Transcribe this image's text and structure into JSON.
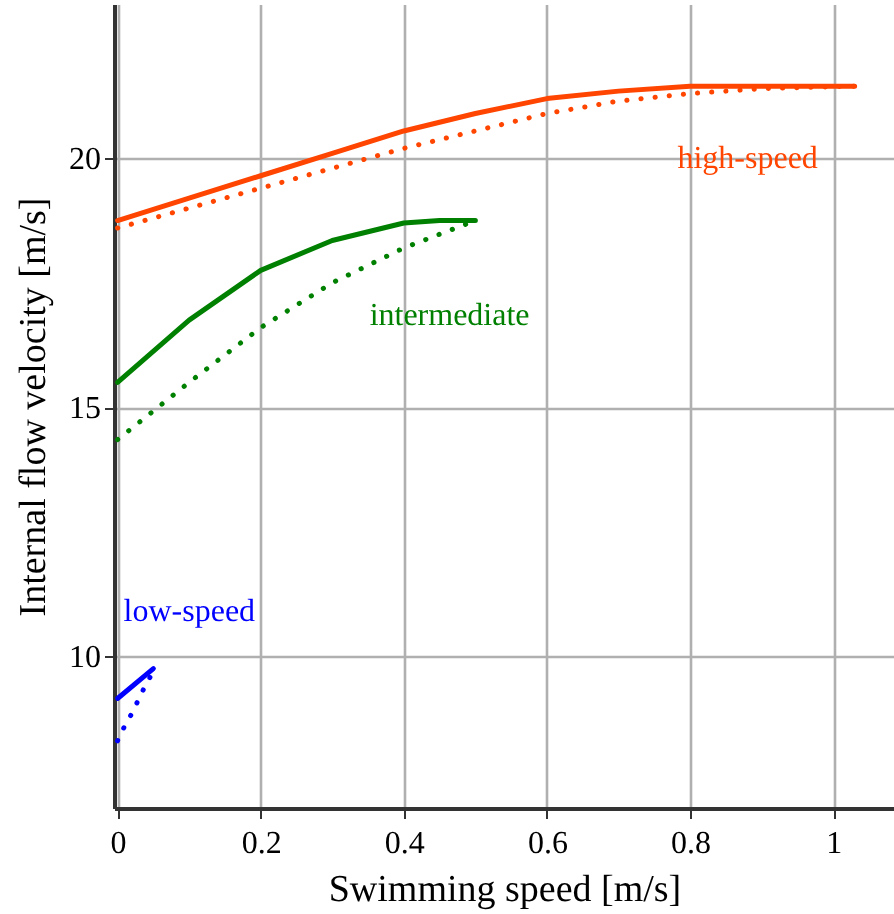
{
  "chart_data": {
    "type": "line",
    "xlabel": "Swimming speed [m/s]",
    "ylabel": "Internal flow velocity [m/s]",
    "xlim": [
      -0.005,
      1.085
    ],
    "ylim": [
      6.95,
      23.1
    ],
    "xticks": [
      0,
      0.2,
      0.4,
      0.6,
      0.8,
      1
    ],
    "yticks": [
      10,
      15,
      20
    ],
    "grid": true,
    "marker": "none",
    "series": [
      {
        "name": "high-speed",
        "color": "#ff4500",
        "line_style": "solid",
        "x": [
          0,
          0.1,
          0.2,
          0.3,
          0.4,
          0.5,
          0.6,
          0.7,
          0.8,
          0.9,
          1.03
        ],
        "values": [
          18.75,
          19.2,
          19.65,
          20.1,
          20.55,
          20.9,
          21.2,
          21.35,
          21.45,
          21.45,
          21.45
        ]
      },
      {
        "color": "#ff4500",
        "line_style": "dotted",
        "x": [
          0,
          0.1,
          0.2,
          0.3,
          0.4,
          0.5,
          0.6,
          0.7,
          0.8,
          0.9,
          1.03
        ],
        "values": [
          18.6,
          19.0,
          19.4,
          19.8,
          20.2,
          20.55,
          20.9,
          21.15,
          21.3,
          21.4,
          21.45
        ]
      },
      {
        "name": "intermediate",
        "color": "#008000",
        "line_style": "solid",
        "x": [
          0,
          0.1,
          0.2,
          0.3,
          0.4,
          0.45,
          0.5
        ],
        "values": [
          15.5,
          16.75,
          17.75,
          18.35,
          18.7,
          18.75,
          18.75
        ]
      },
      {
        "color": "#008000",
        "line_style": "dotted",
        "x": [
          0,
          0.1,
          0.2,
          0.3,
          0.4,
          0.5
        ],
        "values": [
          14.35,
          15.5,
          16.6,
          17.5,
          18.2,
          18.75
        ]
      },
      {
        "name": "low-speed",
        "color": "#0000ff",
        "line_style": "solid",
        "x": [
          0,
          0.05
        ],
        "values": [
          9.15,
          9.75
        ]
      },
      {
        "color": "#0000ff",
        "line_style": "dotted",
        "x": [
          0,
          0.01,
          0.02,
          0.035,
          0.05
        ],
        "values": [
          8.3,
          8.6,
          8.85,
          9.3,
          9.7
        ]
      }
    ]
  }
}
